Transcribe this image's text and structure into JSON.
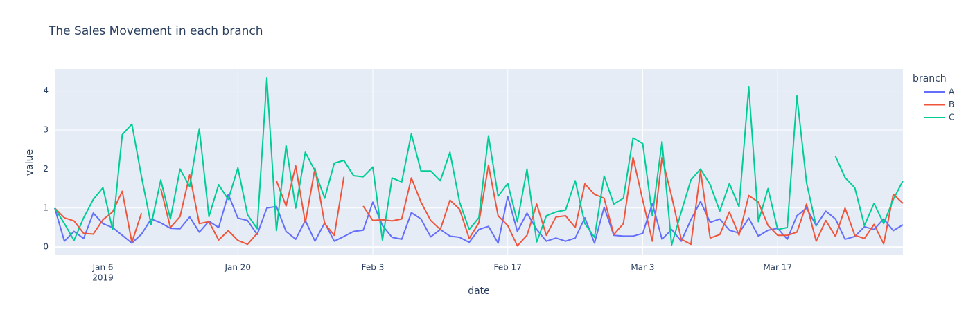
{
  "chart_data": {
    "type": "line",
    "title": "The Sales Movement in each branch",
    "x_label": "date",
    "y_label": "value",
    "legend_title": "branch",
    "x": [
      "2019-01-01",
      "2019-01-02",
      "2019-01-03",
      "2019-01-04",
      "2019-01-05",
      "2019-01-06",
      "2019-01-07",
      "2019-01-08",
      "2019-01-09",
      "2019-01-10",
      "2019-01-11",
      "2019-01-12",
      "2019-01-13",
      "2019-01-14",
      "2019-01-15",
      "2019-01-16",
      "2019-01-17",
      "2019-01-18",
      "2019-01-19",
      "2019-01-20",
      "2019-01-21",
      "2019-01-22",
      "2019-01-23",
      "2019-01-24",
      "2019-01-25",
      "2019-01-26",
      "2019-01-27",
      "2019-01-28",
      "2019-01-29",
      "2019-01-30",
      "2019-01-31",
      "2019-02-01",
      "2019-02-02",
      "2019-02-03",
      "2019-02-04",
      "2019-02-05",
      "2019-02-06",
      "2019-02-07",
      "2019-02-08",
      "2019-02-09",
      "2019-02-10",
      "2019-02-11",
      "2019-02-12",
      "2019-02-13",
      "2019-02-14",
      "2019-02-15",
      "2019-02-16",
      "2019-02-17",
      "2019-02-18",
      "2019-02-19",
      "2019-02-20",
      "2019-02-21",
      "2019-02-22",
      "2019-02-23",
      "2019-02-24",
      "2019-02-25",
      "2019-02-26",
      "2019-02-27",
      "2019-02-28",
      "2019-03-01",
      "2019-03-02",
      "2019-03-03",
      "2019-03-04",
      "2019-03-05",
      "2019-03-06",
      "2019-03-07",
      "2019-03-08",
      "2019-03-09",
      "2019-03-10",
      "2019-03-11",
      "2019-03-12",
      "2019-03-13",
      "2019-03-14",
      "2019-03-15",
      "2019-03-16",
      "2019-03-17",
      "2019-03-18",
      "2019-03-19",
      "2019-03-20",
      "2019-03-21",
      "2019-03-22",
      "2019-03-23",
      "2019-03-24",
      "2019-03-25",
      "2019-03-26",
      "2019-03-27",
      "2019-03-28",
      "2019-03-29",
      "2019-03-30"
    ],
    "series": [
      {
        "name": "A",
        "color": "#636efa",
        "values": [
          1.0,
          0.15,
          0.4,
          0.22,
          0.87,
          0.6,
          0.5,
          0.3,
          0.1,
          0.33,
          0.72,
          0.62,
          0.48,
          0.47,
          0.77,
          0.38,
          0.66,
          0.5,
          1.35,
          0.74,
          0.68,
          0.32,
          1.0,
          1.04,
          0.4,
          0.2,
          0.68,
          0.15,
          0.62,
          0.15,
          0.27,
          0.4,
          0.43,
          1.15,
          0.55,
          0.25,
          0.2,
          0.88,
          0.72,
          0.26,
          0.45,
          0.28,
          0.25,
          0.12,
          0.45,
          0.53,
          0.1,
          1.3,
          0.4,
          0.87,
          0.45,
          0.15,
          0.23,
          0.15,
          0.23,
          0.75,
          0.1,
          1.02,
          0.3,
          0.28,
          0.28,
          0.35,
          1.12,
          0.2,
          0.45,
          0.15,
          0.7,
          1.17,
          0.63,
          0.72,
          0.43,
          0.36,
          0.74,
          0.28,
          0.43,
          0.48,
          0.2,
          0.8,
          1.0,
          0.55,
          0.92,
          0.72,
          0.2,
          0.27,
          0.52,
          0.45,
          0.72,
          0.42,
          0.57
        ]
      },
      {
        "name": "B",
        "color": "#EF553B",
        "values": [
          1.0,
          0.75,
          0.67,
          0.35,
          0.33,
          0.7,
          0.9,
          1.43,
          0.12,
          0.87,
          null,
          1.5,
          0.5,
          0.78,
          1.85,
          0.6,
          0.65,
          0.18,
          0.42,
          0.17,
          0.07,
          0.35,
          null,
          1.7,
          1.05,
          2.08,
          0.62,
          2.02,
          0.6,
          0.3,
          1.8,
          null,
          1.05,
          0.68,
          0.7,
          0.67,
          0.72,
          1.77,
          1.15,
          0.68,
          0.45,
          1.2,
          0.97,
          0.22,
          0.62,
          2.1,
          0.8,
          0.55,
          0.03,
          0.3,
          1.1,
          0.3,
          0.77,
          0.8,
          0.5,
          1.62,
          1.35,
          1.25,
          0.32,
          0.6,
          2.3,
          1.2,
          0.15,
          2.3,
          1.3,
          0.2,
          0.07,
          1.95,
          0.23,
          0.32,
          0.9,
          0.3,
          1.32,
          1.15,
          0.55,
          0.3,
          0.3,
          0.38,
          1.1,
          0.15,
          0.68,
          0.27,
          1.0,
          0.3,
          0.22,
          0.58,
          0.08,
          1.35,
          1.12
        ]
      },
      {
        "name": "C",
        "color": "#00cc96",
        "values": [
          1.0,
          0.6,
          0.17,
          0.75,
          1.22,
          1.52,
          0.45,
          2.88,
          3.15,
          1.8,
          0.57,
          1.72,
          0.72,
          2.0,
          1.55,
          3.03,
          0.78,
          1.6,
          1.22,
          2.03,
          0.83,
          0.47,
          4.33,
          0.42,
          2.6,
          1.0,
          2.43,
          1.95,
          1.25,
          2.15,
          2.22,
          1.83,
          1.8,
          2.05,
          0.18,
          1.77,
          1.67,
          2.9,
          1.95,
          1.95,
          1.7,
          2.43,
          1.15,
          0.45,
          0.75,
          2.85,
          1.3,
          1.63,
          0.65,
          2.0,
          0.13,
          0.8,
          0.9,
          0.95,
          1.7,
          0.6,
          0.25,
          1.82,
          1.1,
          1.25,
          2.8,
          2.65,
          0.8,
          2.7,
          0.05,
          0.9,
          1.72,
          2.0,
          1.6,
          0.92,
          1.63,
          1.03,
          4.1,
          0.65,
          1.5,
          0.45,
          0.5,
          3.87,
          1.65,
          0.53,
          null,
          2.33,
          1.78,
          1.52,
          0.55,
          1.12,
          0.6,
          1.22,
          1.7
        ]
      }
    ],
    "xlim": [
      "2019-01-01",
      "2019-03-30"
    ],
    "xticks": [
      {
        "value": "2019-01-06",
        "label": "Jan 6"
      },
      {
        "value": "2019-01-20",
        "label": "Jan 20"
      },
      {
        "value": "2019-02-03",
        "label": "Feb 3"
      },
      {
        "value": "2019-02-17",
        "label": "Feb 17"
      },
      {
        "value": "2019-03-03",
        "label": "Mar 3"
      },
      {
        "value": "2019-03-17",
        "label": "Mar 17"
      }
    ],
    "x_year_label": "2019",
    "ylim": [
      -0.21,
      4.56
    ],
    "yticks": [
      0,
      1,
      2,
      3,
      4
    ],
    "grid": true,
    "legend": "right"
  }
}
